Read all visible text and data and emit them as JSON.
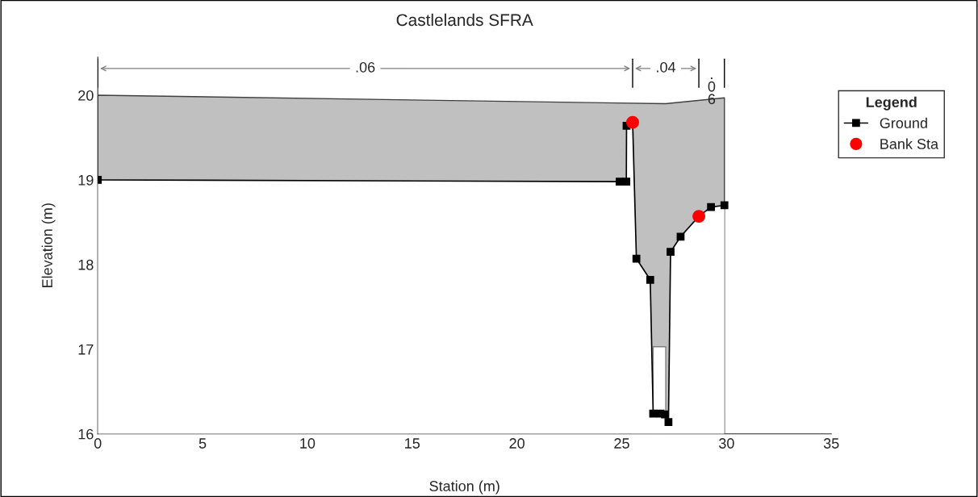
{
  "chart_data": {
    "type": "area",
    "title": "Castlelands SFRA",
    "xlabel": "Station (m)",
    "ylabel": "Elevation (m)",
    "legend_title": "Legend",
    "series": [
      {
        "type": "area",
        "color": "#c0c0c0",
        "x": [
          0,
          27.1,
          29.9
        ],
        "values": [
          20.0,
          19.9,
          19.97
        ]
      },
      {
        "type": "area",
        "color": "#ffffff",
        "x": [
          26.5,
          27.1
        ],
        "values": [
          17.03,
          17.03
        ]
      },
      {
        "name": "Ground",
        "color": "#000000",
        "marker": "square",
        "x": [
          0,
          24.9,
          25.22,
          25.23,
          25.52,
          25.7,
          26.36,
          26.5,
          26.85,
          27.06,
          27.23,
          27.33,
          27.81,
          28.68,
          29.26,
          29.9
        ],
        "values": [
          19.0,
          18.98,
          18.98,
          19.64,
          19.68,
          18.07,
          17.82,
          16.24,
          16.24,
          16.23,
          16.14,
          18.15,
          18.33,
          18.57,
          18.68,
          18.7
        ]
      },
      {
        "type": "scatter",
        "name": "Bank Sta",
        "color": "#ff0000",
        "marker": "circle",
        "x": [
          25.52,
          28.68
        ],
        "values": [
          19.68,
          18.57
        ]
      }
    ],
    "annotations": [
      ".06",
      ".04",
      ".06"
    ],
    "xlim": [
      0,
      35
    ],
    "xticks": [
      0,
      5,
      10,
      15,
      20,
      25,
      30,
      35
    ],
    "ylim": [
      16,
      20.45
    ],
    "yticks": [
      16,
      17,
      18,
      19,
      20
    ],
    "grid": false,
    "legend": "right"
  }
}
